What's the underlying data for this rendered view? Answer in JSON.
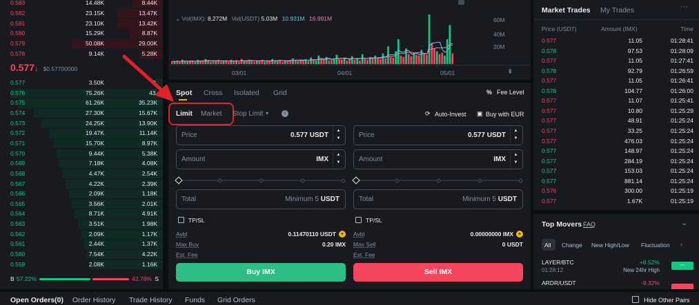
{
  "orderbook": {
    "asks": [
      {
        "price": "0.583",
        "amount": "14.48K",
        "total": "8.44K",
        "depth": 0.2
      },
      {
        "price": "0.582",
        "amount": "23.15K",
        "total": "13.47K",
        "depth": 0.3
      },
      {
        "price": "0.581",
        "amount": "23.10K",
        "total": "13.42K",
        "depth": 0.3
      },
      {
        "price": "0.580",
        "amount": "15.29K",
        "total": "8.87K",
        "depth": 0.22
      },
      {
        "price": "0.579",
        "amount": "50.08K",
        "total": "29.00K",
        "depth": 0.6
      },
      {
        "price": "0.578",
        "amount": "9.14K",
        "total": "5.28K",
        "depth": 0.15
      }
    ],
    "last_price": "0.577",
    "last_arrow": "↓",
    "last_ref": "$0.57700000",
    "bids": [
      {
        "price": "0.577",
        "amount": "3.50K",
        "total": "2.",
        "depth": 0.05
      },
      {
        "price": "0.576",
        "amount": "75.26K",
        "total": "43.",
        "depth": 1.0
      },
      {
        "price": "0.575",
        "amount": "61.26K",
        "total": "35.23K",
        "depth": 0.95
      },
      {
        "price": "0.574",
        "amount": "27.30K",
        "total": "15.67K",
        "depth": 0.85
      },
      {
        "price": "0.573",
        "amount": "24.25K",
        "total": "13.90K",
        "depth": 0.8
      },
      {
        "price": "0.572",
        "amount": "19.47K",
        "total": "11.14K",
        "depth": 0.75
      },
      {
        "price": "0.571",
        "amount": "15.70K",
        "total": "8.97K",
        "depth": 0.72
      },
      {
        "price": "0.570",
        "amount": "9.44K",
        "total": "5.38K",
        "depth": 0.7
      },
      {
        "price": "0.569",
        "amount": "7.18K",
        "total": "4.08K",
        "depth": 0.68
      },
      {
        "price": "0.568",
        "amount": "4.47K",
        "total": "2.54K",
        "depth": 0.66
      },
      {
        "price": "0.567",
        "amount": "4.22K",
        "total": "2.39K",
        "depth": 0.64
      },
      {
        "price": "0.566",
        "amount": "2.09K",
        "total": "1.18K",
        "depth": 0.62
      },
      {
        "price": "0.565",
        "amount": "3.56K",
        "total": "2.01K",
        "depth": 0.6
      },
      {
        "price": "0.564",
        "amount": "8.71K",
        "total": "4.91K",
        "depth": 0.58
      },
      {
        "price": "0.563",
        "amount": "3.51K",
        "total": "1.98K",
        "depth": 0.56
      },
      {
        "price": "0.562",
        "amount": "2.09K",
        "total": "1.17K",
        "depth": 0.54
      },
      {
        "price": "0.561",
        "amount": "2.44K",
        "total": "1.37K",
        "depth": 0.52
      },
      {
        "price": "0.560",
        "amount": "7.54K",
        "total": "4.22K",
        "depth": 0.5
      },
      {
        "price": "0.559",
        "amount": "2.08K",
        "total": "1.16K",
        "depth": 0.48
      }
    ],
    "buy_label": "B",
    "buy_pct": "57.22%",
    "sell_pct": "42.78%",
    "sell_label": "S",
    "buy_ratio": 0.5722
  },
  "chart": {
    "vol_label": "Vol(IMX):",
    "vol_value": "8.272M",
    "volu_label": "Vol(USDT)",
    "volu_value": "5.03M",
    "ma1": "10.931M",
    "ma2": "16.991M",
    "y_ticks": [
      "60M",
      "40M",
      "20M"
    ],
    "x_ticks": [
      "03/01",
      "04/01",
      "05/01"
    ],
    "bars": [
      {
        "v": 4,
        "c": "red"
      },
      {
        "v": 3,
        "c": "green"
      },
      {
        "v": 5,
        "c": "red"
      },
      {
        "v": 3,
        "c": "red"
      },
      {
        "v": 6,
        "c": "green"
      },
      {
        "v": 4,
        "c": "red"
      },
      {
        "v": 3,
        "c": "green"
      },
      {
        "v": 5,
        "c": "red"
      },
      {
        "v": 4,
        "c": "red"
      },
      {
        "v": 3,
        "c": "green"
      },
      {
        "v": 6,
        "c": "green"
      },
      {
        "v": 4,
        "c": "red"
      },
      {
        "v": 5,
        "c": "red"
      },
      {
        "v": 7,
        "c": "green"
      },
      {
        "v": 4,
        "c": "red"
      },
      {
        "v": 3,
        "c": "green"
      },
      {
        "v": 5,
        "c": "red"
      },
      {
        "v": 4,
        "c": "green"
      },
      {
        "v": 6,
        "c": "red"
      },
      {
        "v": 3,
        "c": "red"
      },
      {
        "v": 4,
        "c": "green"
      },
      {
        "v": 5,
        "c": "red"
      },
      {
        "v": 3,
        "c": "red"
      },
      {
        "v": 6,
        "c": "green"
      },
      {
        "v": 4,
        "c": "red"
      },
      {
        "v": 5,
        "c": "green"
      },
      {
        "v": 3,
        "c": "red"
      },
      {
        "v": 7,
        "c": "red"
      },
      {
        "v": 4,
        "c": "green"
      },
      {
        "v": 5,
        "c": "red"
      },
      {
        "v": 6,
        "c": "green"
      },
      {
        "v": 4,
        "c": "red"
      },
      {
        "v": 3,
        "c": "red"
      },
      {
        "v": 5,
        "c": "green"
      },
      {
        "v": 4,
        "c": "red"
      },
      {
        "v": 6,
        "c": "red"
      },
      {
        "v": 3,
        "c": "green"
      },
      {
        "v": 5,
        "c": "red"
      },
      {
        "v": 4,
        "c": "red"
      },
      {
        "v": 7,
        "c": "green"
      },
      {
        "v": 5,
        "c": "red"
      },
      {
        "v": 4,
        "c": "green"
      },
      {
        "v": 6,
        "c": "red"
      },
      {
        "v": 3,
        "c": "red"
      },
      {
        "v": 5,
        "c": "green"
      },
      {
        "v": 4,
        "c": "red"
      },
      {
        "v": 6,
        "c": "red"
      },
      {
        "v": 8,
        "c": "green"
      },
      {
        "v": 5,
        "c": "red"
      },
      {
        "v": 4,
        "c": "green"
      },
      {
        "v": 6,
        "c": "red"
      },
      {
        "v": 5,
        "c": "red"
      },
      {
        "v": 7,
        "c": "green"
      },
      {
        "v": 4,
        "c": "red"
      },
      {
        "v": 9,
        "c": "green"
      },
      {
        "v": 6,
        "c": "red"
      },
      {
        "v": 5,
        "c": "green"
      },
      {
        "v": 12,
        "c": "green"
      },
      {
        "v": 7,
        "c": "red"
      },
      {
        "v": 6,
        "c": "red"
      },
      {
        "v": 10,
        "c": "green"
      },
      {
        "v": 5,
        "c": "red"
      },
      {
        "v": 6,
        "c": "red"
      },
      {
        "v": 8,
        "c": "green"
      },
      {
        "v": 13,
        "c": "green"
      },
      {
        "v": 7,
        "c": "red"
      },
      {
        "v": 6,
        "c": "red"
      },
      {
        "v": 9,
        "c": "green"
      },
      {
        "v": 5,
        "c": "red"
      },
      {
        "v": 7,
        "c": "red"
      },
      {
        "v": 11,
        "c": "green"
      },
      {
        "v": 6,
        "c": "red"
      },
      {
        "v": 8,
        "c": "green"
      },
      {
        "v": 5,
        "c": "red"
      },
      {
        "v": 14,
        "c": "green"
      },
      {
        "v": 7,
        "c": "red"
      },
      {
        "v": 6,
        "c": "red"
      },
      {
        "v": 10,
        "c": "green"
      },
      {
        "v": 8,
        "c": "red"
      },
      {
        "v": 12,
        "c": "green"
      },
      {
        "v": 9,
        "c": "red"
      },
      {
        "v": 7,
        "c": "red"
      },
      {
        "v": 15,
        "c": "green"
      },
      {
        "v": 8,
        "c": "red"
      },
      {
        "v": 25,
        "c": "green"
      },
      {
        "v": 10,
        "c": "red"
      },
      {
        "v": 9,
        "c": "red"
      },
      {
        "v": 18,
        "c": "green"
      },
      {
        "v": 35,
        "c": "green"
      },
      {
        "v": 12,
        "c": "red"
      },
      {
        "v": 10,
        "c": "red"
      },
      {
        "v": 22,
        "c": "green"
      },
      {
        "v": 14,
        "c": "red"
      },
      {
        "v": 11,
        "c": "red"
      },
      {
        "v": 16,
        "c": "green"
      },
      {
        "v": 13,
        "c": "red"
      },
      {
        "v": 12,
        "c": "red"
      },
      {
        "v": 20,
        "c": "green"
      },
      {
        "v": 15,
        "c": "red"
      },
      {
        "v": 13,
        "c": "red"
      },
      {
        "v": 70,
        "c": "green"
      },
      {
        "v": 30,
        "c": "red"
      },
      {
        "v": 22,
        "c": "red"
      },
      {
        "v": 18,
        "c": "green"
      },
      {
        "v": 14,
        "c": "red"
      },
      {
        "v": 16,
        "c": "red"
      },
      {
        "v": 12,
        "c": "green"
      },
      {
        "v": 35,
        "c": "green"
      },
      {
        "v": 55,
        "c": "green"
      },
      {
        "v": 15,
        "c": "red"
      }
    ]
  },
  "form": {
    "tabs": [
      "Spot",
      "Cross",
      "Isolated",
      "Grid"
    ],
    "fee_label": "Fee Level",
    "order_types": [
      "Limit",
      "Market",
      "Stop Limit"
    ],
    "auto_invest": "Auto-Invest",
    "buy_with": "Buy with EUR",
    "buy": {
      "price_label": "Price",
      "price_value": "0.577",
      "price_unit": "USDT",
      "amount_label": "Amount",
      "amount_unit": "IMX",
      "total_label": "Total",
      "total_min": "Minimum 5",
      "total_unit": "USDT",
      "tpsl": "TP/SL",
      "avbl_label": "Avbl",
      "avbl_value": "0.11470110 USDT",
      "max_label": "Max Buy",
      "max_value": "0.20 IMX",
      "fee_label": "Est. Fee",
      "button": "Buy IMX"
    },
    "sell": {
      "price_label": "Price",
      "price_value": "0.577",
      "price_unit": "USDT",
      "amount_label": "Amount",
      "amount_unit": "IMX",
      "total_label": "Total",
      "total_min": "Minimum 5",
      "total_unit": "USDT",
      "tpsl": "TP/SL",
      "avbl_label": "Avbl",
      "avbl_value": "0.00000000 IMX",
      "max_label": "Max Sell",
      "max_value": "0 USDT",
      "fee_label": "Est. Fee",
      "button": "Sell IMX"
    }
  },
  "trades": {
    "tabs": [
      "Market Trades",
      "My Trades"
    ],
    "headers": [
      "Price (USDT)",
      "Amount (IMX)",
      "Time"
    ],
    "rows": [
      {
        "p": "0.577",
        "a": "11.05",
        "t": "01:28:41",
        "c": "red"
      },
      {
        "p": "0.578",
        "a": "97.53",
        "t": "01:28:09",
        "c": "green"
      },
      {
        "p": "0.577",
        "a": "11.05",
        "t": "01:27:41",
        "c": "red"
      },
      {
        "p": "0.578",
        "a": "92.79",
        "t": "01:26:59",
        "c": "green"
      },
      {
        "p": "0.577",
        "a": "11.05",
        "t": "01:26:41",
        "c": "red"
      },
      {
        "p": "0.578",
        "a": "104.77",
        "t": "01:26:00",
        "c": "green"
      },
      {
        "p": "0.577",
        "a": "11.07",
        "t": "01:25:41",
        "c": "red"
      },
      {
        "p": "0.577",
        "a": "10.80",
        "t": "01:25:29",
        "c": "red"
      },
      {
        "p": "0.577",
        "a": "48.91",
        "t": "01:25:24",
        "c": "red"
      },
      {
        "p": "0.577",
        "a": "33.25",
        "t": "01:25:24",
        "c": "red"
      },
      {
        "p": "0.577",
        "a": "476.03",
        "t": "01:25:24",
        "c": "red"
      },
      {
        "p": "0.577",
        "a": "148.97",
        "t": "01:25:24",
        "c": "green"
      },
      {
        "p": "0.577",
        "a": "284.19",
        "t": "01:25:24",
        "c": "green"
      },
      {
        "p": "0.577",
        "a": "153.03",
        "t": "01:25:24",
        "c": "green"
      },
      {
        "p": "0.577",
        "a": "881.14",
        "t": "01:25:24",
        "c": "green"
      },
      {
        "p": "0.576",
        "a": "300.00",
        "t": "01:25:19",
        "c": "red"
      },
      {
        "p": "0.577",
        "a": "1.67K",
        "t": "01:25:19",
        "c": "red"
      }
    ]
  },
  "movers": {
    "title": "Top Movers",
    "faq": "FAQ",
    "filters": [
      "All",
      "Change",
      "New High/Low",
      "Fluctuation"
    ],
    "items": [
      {
        "pair": "LAYER/BTC",
        "time": "01:28:12",
        "change": "+8.52%",
        "desc": "New 24hr High",
        "c": "green"
      },
      {
        "pair": "ARDR/USDT",
        "time": "",
        "change": "-9.32%",
        "desc": "",
        "c": "red"
      }
    ]
  },
  "bottom": {
    "tabs": [
      "Open Orders(0)",
      "Order History",
      "Trade History",
      "Funds",
      "Grid Orders"
    ],
    "hide_label": "Hide Other Pairs"
  }
}
